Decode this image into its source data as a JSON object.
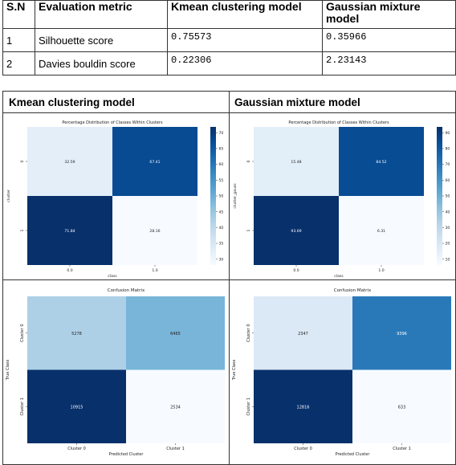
{
  "table": {
    "headers": [
      "S.N",
      "Evaluation metric",
      "Kmean clustering model",
      "Gaussian mixture model"
    ],
    "rows": [
      {
        "sn": "1",
        "metric": "Silhouette score",
        "kmean": "0.75573",
        "gmm": "0.35966"
      },
      {
        "sn": "2",
        "metric": "Davies bouldin score",
        "kmean": "0.22306",
        "gmm": "2.23143"
      }
    ]
  },
  "panels": {
    "left_title": "Kmean clustering model",
    "right_title": "Gaussian mixture model"
  },
  "chart_data": [
    {
      "type": "heatmap",
      "title": "Percentage Distribution of Classes Within Clusters",
      "xlabel": "class",
      "ylabel": "cluster",
      "x_ticks": [
        "0.0",
        "1.0"
      ],
      "y_ticks": [
        "0",
        "1"
      ],
      "values": [
        [
          32.59,
          67.41
        ],
        [
          71.84,
          28.16
        ]
      ],
      "labels": [
        [
          "32.59",
          "67.41"
        ],
        [
          "71.84",
          "28.16"
        ]
      ],
      "colormap": "Blues",
      "vmin": 28.16,
      "vmax": 71.84,
      "colorbar_ticks": [
        30,
        35,
        40,
        45,
        50,
        55,
        60,
        65,
        70
      ]
    },
    {
      "type": "heatmap",
      "title": "Percentage Distribution of Classes Within Clusters",
      "xlabel": "class",
      "ylabel": "cluster_gauss",
      "x_ticks": [
        "0.0",
        "1.0"
      ],
      "y_ticks": [
        "0",
        "1"
      ],
      "values": [
        [
          15.48,
          84.52
        ],
        [
          93.69,
          6.31
        ]
      ],
      "labels": [
        [
          "15.48",
          "84.52"
        ],
        [
          "93.69",
          "6.31"
        ]
      ],
      "colormap": "Blues",
      "vmin": 6.31,
      "vmax": 93.69,
      "colorbar_ticks": [
        10,
        20,
        30,
        40,
        50,
        60,
        70,
        80,
        90
      ]
    },
    {
      "type": "heatmap",
      "title": "Confusion Matrix",
      "xlabel": "Predicted Cluster",
      "ylabel": "True Class",
      "x_ticks": [
        "Cluster 0",
        "Cluster 1"
      ],
      "y_ticks": [
        "Cluster 0",
        "Cluster 1"
      ],
      "values": [
        [
          5278,
          6465
        ],
        [
          10915,
          2534
        ]
      ],
      "labels": [
        [
          "5278",
          "6465"
        ],
        [
          "10915",
          "2534"
        ]
      ],
      "colormap": "Blues",
      "vmin": 2534,
      "vmax": 10915
    },
    {
      "type": "heatmap",
      "title": "Confusion Matrix",
      "xlabel": "Predicted Cluster",
      "ylabel": "True Class",
      "x_ticks": [
        "Cluster 0",
        "Cluster 1"
      ],
      "y_ticks": [
        "Cluster 0",
        "Cluster 1"
      ],
      "values": [
        [
          2347,
          9396
        ],
        [
          12816,
          633
        ]
      ],
      "labels": [
        [
          "2347",
          "9396"
        ],
        [
          "12816",
          "633"
        ]
      ],
      "colormap": "Blues",
      "vmin": 633,
      "vmax": 12816
    }
  ]
}
